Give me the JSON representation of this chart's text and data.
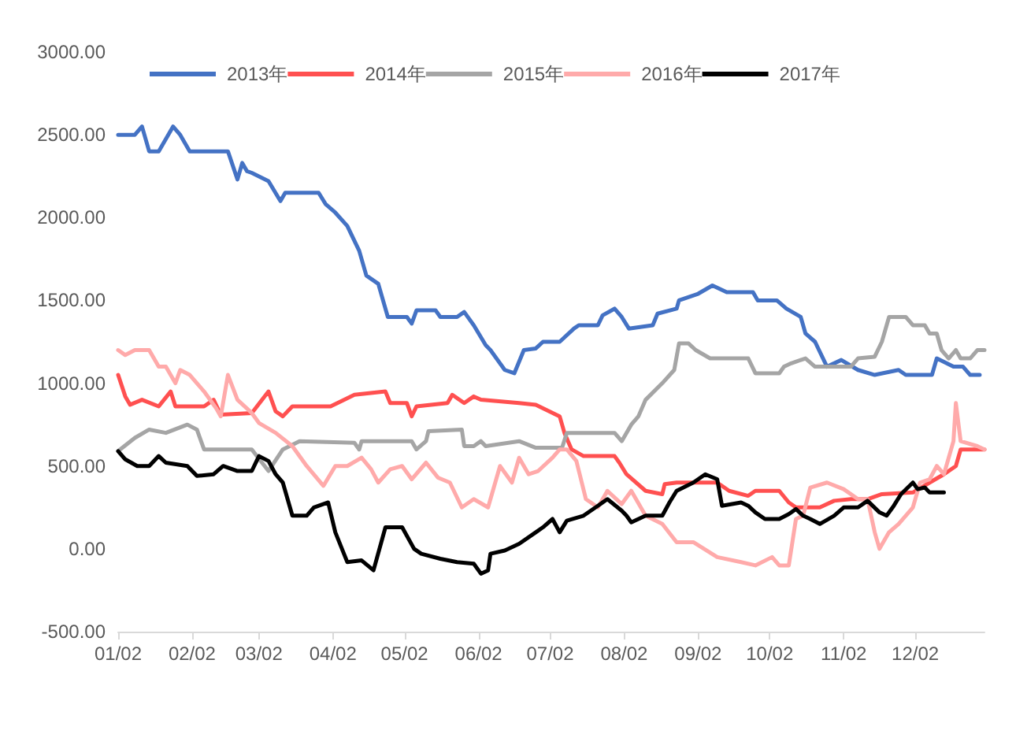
{
  "chart_data": {
    "type": "line",
    "legend": "top",
    "grid": false,
    "marker": "none",
    "line_style": "solid",
    "xlim": [
      "--01-02",
      "--12-31"
    ],
    "xticks": [
      {
        "value": "--01-02",
        "label": "01/02"
      },
      {
        "value": "--02-02",
        "label": "02/02"
      },
      {
        "value": "--03-02",
        "label": "03/02"
      },
      {
        "value": "--04-02",
        "label": "04/02"
      },
      {
        "value": "--05-02",
        "label": "05/02"
      },
      {
        "value": "--06-02",
        "label": "06/02"
      },
      {
        "value": "--07-02",
        "label": "07/02"
      },
      {
        "value": "--08-02",
        "label": "08/02"
      },
      {
        "value": "--09-02",
        "label": "09/02"
      },
      {
        "value": "--10-02",
        "label": "10/02"
      },
      {
        "value": "--11-02",
        "label": "11/02"
      },
      {
        "value": "--12-02",
        "label": "12/02"
      }
    ],
    "ylim": [
      -500,
      3000
    ],
    "yticks": [
      {
        "value": -500,
        "label": "-500.00"
      },
      {
        "value": 0,
        "label": "0.00"
      },
      {
        "value": 500,
        "label": "500.00"
      },
      {
        "value": 1000,
        "label": "1000.00"
      },
      {
        "value": 1500,
        "label": "1500.00"
      },
      {
        "value": 2000,
        "label": "2000.00"
      },
      {
        "value": 2500,
        "label": "2500.00"
      },
      {
        "value": 3000,
        "label": "3000.00"
      }
    ],
    "series": [
      {
        "name": "2013年",
        "color": "#4472c4",
        "x": [
          "--01-02",
          "--01-09",
          "--01-12",
          "--01-15",
          "--01-19",
          "--01-25",
          "--01-28",
          "--02-01",
          "--02-17",
          "--02-21",
          "--02-23",
          "--02-25",
          "--02-27",
          "--03-06",
          "--03-11",
          "--03-13",
          "--03-27",
          "--03-30",
          "--04-03",
          "--04-08",
          "--04-13",
          "--04-16",
          "--04-21",
          "--04-25",
          "--05-03",
          "--05-05",
          "--05-07",
          "--05-15",
          "--05-17",
          "--05-24",
          "--05-27",
          "--05-31",
          "--06-05",
          "--06-07",
          "--06-13",
          "--06-17",
          "--06-21",
          "--06-26",
          "--06-29",
          "--07-06",
          "--07-12",
          "--07-14",
          "--07-22",
          "--07-24",
          "--07-29",
          "--08-01",
          "--08-04",
          "--08-14",
          "--08-16",
          "--08-24",
          "--08-25",
          "--09-02",
          "--09-08",
          "--09-14",
          "--09-25",
          "--09-27",
          "--10-05",
          "--10-09",
          "--10-15",
          "--10-17",
          "--10-21",
          "--10-26",
          "--11-01",
          "--11-08",
          "--11-15",
          "--11-25",
          "--11-28",
          "--12-09",
          "--12-11",
          "--12-18",
          "--12-22",
          "--12-25",
          "--12-29"
        ],
        "values": [
          2500,
          2500,
          2550,
          2400,
          2400,
          2550,
          2500,
          2400,
          2400,
          2230,
          2330,
          2280,
          2270,
          2220,
          2100,
          2150,
          2150,
          2080,
          2030,
          1950,
          1800,
          1650,
          1600,
          1400,
          1400,
          1360,
          1440,
          1440,
          1400,
          1400,
          1430,
          1350,
          1230,
          1200,
          1080,
          1060,
          1200,
          1210,
          1250,
          1250,
          1330,
          1350,
          1350,
          1410,
          1450,
          1400,
          1330,
          1350,
          1420,
          1450,
          1500,
          1540,
          1590,
          1550,
          1550,
          1500,
          1500,
          1450,
          1400,
          1300,
          1250,
          1100,
          1140,
          1080,
          1050,
          1080,
          1050,
          1050,
          1150,
          1100,
          1100,
          1050,
          1050
        ]
      },
      {
        "name": "2014年",
        "color": "#ff5050",
        "x": [
          "--01-02",
          "--01-05",
          "--01-07",
          "--01-12",
          "--01-19",
          "--01-24",
          "--01-26",
          "--02-07",
          "--02-11",
          "--02-14",
          "--02-27",
          "--03-06",
          "--03-09",
          "--03-12",
          "--03-16",
          "--04-01",
          "--04-11",
          "--04-24",
          "--04-26",
          "--05-03",
          "--05-05",
          "--05-07",
          "--05-20",
          "--05-22",
          "--05-27",
          "--05-31",
          "--06-03",
          "--06-19",
          "--06-26",
          "--07-06",
          "--07-08",
          "--07-11",
          "--07-16",
          "--07-29",
          "--07-31",
          "--08-03",
          "--08-11",
          "--08-18",
          "--08-19",
          "--08-24",
          "--09-10",
          "--09-15",
          "--09-23",
          "--09-26",
          "--10-06",
          "--10-10",
          "--10-13",
          "--10-23",
          "--10-29",
          "--11-05",
          "--11-12",
          "--11-18",
          "--12-01",
          "--12-08",
          "--12-14",
          "--12-19",
          "--12-21",
          "--12-31"
        ],
        "values": [
          1050,
          920,
          870,
          900,
          860,
          950,
          860,
          860,
          900,
          810,
          820,
          950,
          830,
          800,
          860,
          860,
          930,
          950,
          880,
          880,
          800,
          860,
          880,
          930,
          880,
          920,
          900,
          880,
          870,
          800,
          700,
          600,
          560,
          560,
          520,
          450,
          350,
          330,
          390,
          400,
          400,
          350,
          320,
          350,
          350,
          280,
          250,
          250,
          290,
          300,
          300,
          330,
          340,
          400,
          450,
          500,
          600,
          600
        ]
      },
      {
        "name": "2015年",
        "color": "#a5a5a5",
        "x": [
          "--01-02",
          "--01-09",
          "--01-15",
          "--01-22",
          "--01-31",
          "--02-04",
          "--02-07",
          "--02-27",
          "--03-06",
          "--03-12",
          "--03-19",
          "--04-11",
          "--04-13",
          "--04-14",
          "--05-05",
          "--05-07",
          "--05-11",
          "--05-12",
          "--05-26",
          "--05-27",
          "--05-31",
          "--06-03",
          "--06-05",
          "--06-19",
          "--06-26",
          "--07-07",
          "--07-09",
          "--07-29",
          "--08-01",
          "--08-05",
          "--08-08",
          "--08-11",
          "--08-18",
          "--08-23",
          "--08-25",
          "--08-29",
          "--09-01",
          "--09-07",
          "--09-23",
          "--09-26",
          "--10-06",
          "--10-08",
          "--10-11",
          "--10-17",
          "--10-21",
          "--11-05",
          "--11-08",
          "--11-15",
          "--11-18",
          "--11-21",
          "--11-28",
          "--12-01",
          "--12-06",
          "--12-08",
          "--12-11",
          "--12-13",
          "--12-16",
          "--12-19",
          "--12-21",
          "--12-25",
          "--12-28",
          "--12-31"
        ],
        "values": [
          590,
          670,
          720,
          700,
          750,
          720,
          600,
          600,
          470,
          600,
          650,
          640,
          600,
          650,
          650,
          600,
          650,
          710,
          720,
          620,
          620,
          650,
          620,
          650,
          610,
          610,
          700,
          700,
          650,
          750,
          800,
          900,
          1000,
          1080,
          1240,
          1240,
          1200,
          1150,
          1150,
          1060,
          1060,
          1100,
          1120,
          1150,
          1100,
          1100,
          1150,
          1160,
          1250,
          1400,
          1400,
          1350,
          1350,
          1300,
          1300,
          1200,
          1150,
          1200,
          1150,
          1150,
          1200,
          1200
        ]
      },
      {
        "name": "2016年",
        "color": "#ffaaaa",
        "x": [
          "--01-02",
          "--01-05",
          "--01-09",
          "--01-15",
          "--01-19",
          "--01-22",
          "--01-26",
          "--01-28",
          "--02-01",
          "--02-04",
          "--02-07",
          "--02-12",
          "--02-14",
          "--02-17",
          "--02-21",
          "--02-27",
          "--03-02",
          "--03-09",
          "--03-16",
          "--03-22",
          "--03-29",
          "--04-03",
          "--04-08",
          "--04-14",
          "--04-18",
          "--04-21",
          "--04-26",
          "--05-01",
          "--05-05",
          "--05-11",
          "--05-16",
          "--05-21",
          "--05-26",
          "--05-31",
          "--06-06",
          "--06-11",
          "--06-16",
          "--06-19",
          "--06-23",
          "--06-27",
          "--07-03",
          "--07-06",
          "--07-09",
          "--07-13",
          "--07-17",
          "--07-22",
          "--07-26",
          "--08-01",
          "--08-05",
          "--08-11",
          "--08-18",
          "--08-24",
          "--08-31",
          "--09-10",
          "--09-20",
          "--09-26",
          "--10-03",
          "--10-06",
          "--10-10",
          "--10-13",
          "--10-16",
          "--10-19",
          "--10-26",
          "--11-02",
          "--11-08",
          "--11-12",
          "--11-15",
          "--11-17",
          "--11-21",
          "--11-25",
          "--12-01",
          "--12-04",
          "--12-08",
          "--12-11",
          "--12-14",
          "--12-18",
          "--12-19",
          "--12-21",
          "--12-28",
          "--12-31"
        ],
        "values": [
          1200,
          1170,
          1200,
          1200,
          1100,
          1100,
          1000,
          1080,
          1050,
          1000,
          950,
          850,
          800,
          1050,
          900,
          820,
          760,
          700,
          620,
          500,
          380,
          500,
          500,
          550,
          480,
          400,
          480,
          500,
          420,
          520,
          430,
          400,
          250,
          300,
          250,
          500,
          400,
          550,
          450,
          470,
          550,
          600,
          600,
          530,
          300,
          250,
          350,
          270,
          350,
          200,
          150,
          40,
          40,
          -50,
          -80,
          -100,
          -50,
          -100,
          -100,
          180,
          200,
          370,
          400,
          360,
          300,
          300,
          100,
          0,
          100,
          150,
          250,
          400,
          420,
          500,
          450,
          650,
          880,
          650,
          620,
          600
        ]
      },
      {
        "name": "2017年",
        "color": "#000000",
        "x": [
          "--01-02",
          "--01-05",
          "--01-10",
          "--01-15",
          "--01-19",
          "--01-22",
          "--01-31",
          "--02-04",
          "--02-11",
          "--02-15",
          "--02-21",
          "--02-27",
          "--03-02",
          "--03-06",
          "--03-09",
          "--03-12",
          "--03-16",
          "--03-22",
          "--03-25",
          "--03-31",
          "--04-03",
          "--04-08",
          "--04-14",
          "--04-19",
          "--04-24",
          "--05-01",
          "--05-06",
          "--05-09",
          "--05-17",
          "--05-24",
          "--05-31",
          "--06-03",
          "--06-06",
          "--06-07",
          "--06-13",
          "--06-19",
          "--06-26",
          "--06-29",
          "--07-03",
          "--07-06",
          "--07-09",
          "--07-16",
          "--07-22",
          "--07-26",
          "--08-01",
          "--08-03",
          "--08-05",
          "--08-08",
          "--08-11",
          "--08-18",
          "--08-21",
          "--08-24",
          "--08-31",
          "--09-05",
          "--09-10",
          "--09-12",
          "--09-20",
          "--09-23",
          "--09-26",
          "--09-30",
          "--10-06",
          "--10-10",
          "--10-13",
          "--10-16",
          "--10-19",
          "--10-23",
          "--10-29",
          "--11-02",
          "--11-08",
          "--11-12",
          "--11-17",
          "--11-20",
          "--11-23",
          "--11-26",
          "--12-01",
          "--12-03",
          "--12-06",
          "--12-08",
          "--12-14"
        ],
        "values": [
          590,
          540,
          500,
          500,
          560,
          520,
          500,
          440,
          450,
          500,
          470,
          470,
          560,
          530,
          450,
          400,
          200,
          200,
          250,
          280,
          100,
          -80,
          -70,
          -130,
          130,
          130,
          0,
          -30,
          -60,
          -80,
          -90,
          -150,
          -130,
          -30,
          -10,
          30,
          100,
          130,
          180,
          100,
          170,
          200,
          260,
          300,
          230,
          200,
          160,
          180,
          200,
          200,
          280,
          350,
          400,
          450,
          420,
          260,
          280,
          260,
          220,
          180,
          180,
          210,
          240,
          200,
          180,
          150,
          200,
          250,
          250,
          290,
          220,
          200,
          260,
          330,
          400,
          360,
          370,
          340,
          340
        ]
      }
    ]
  }
}
